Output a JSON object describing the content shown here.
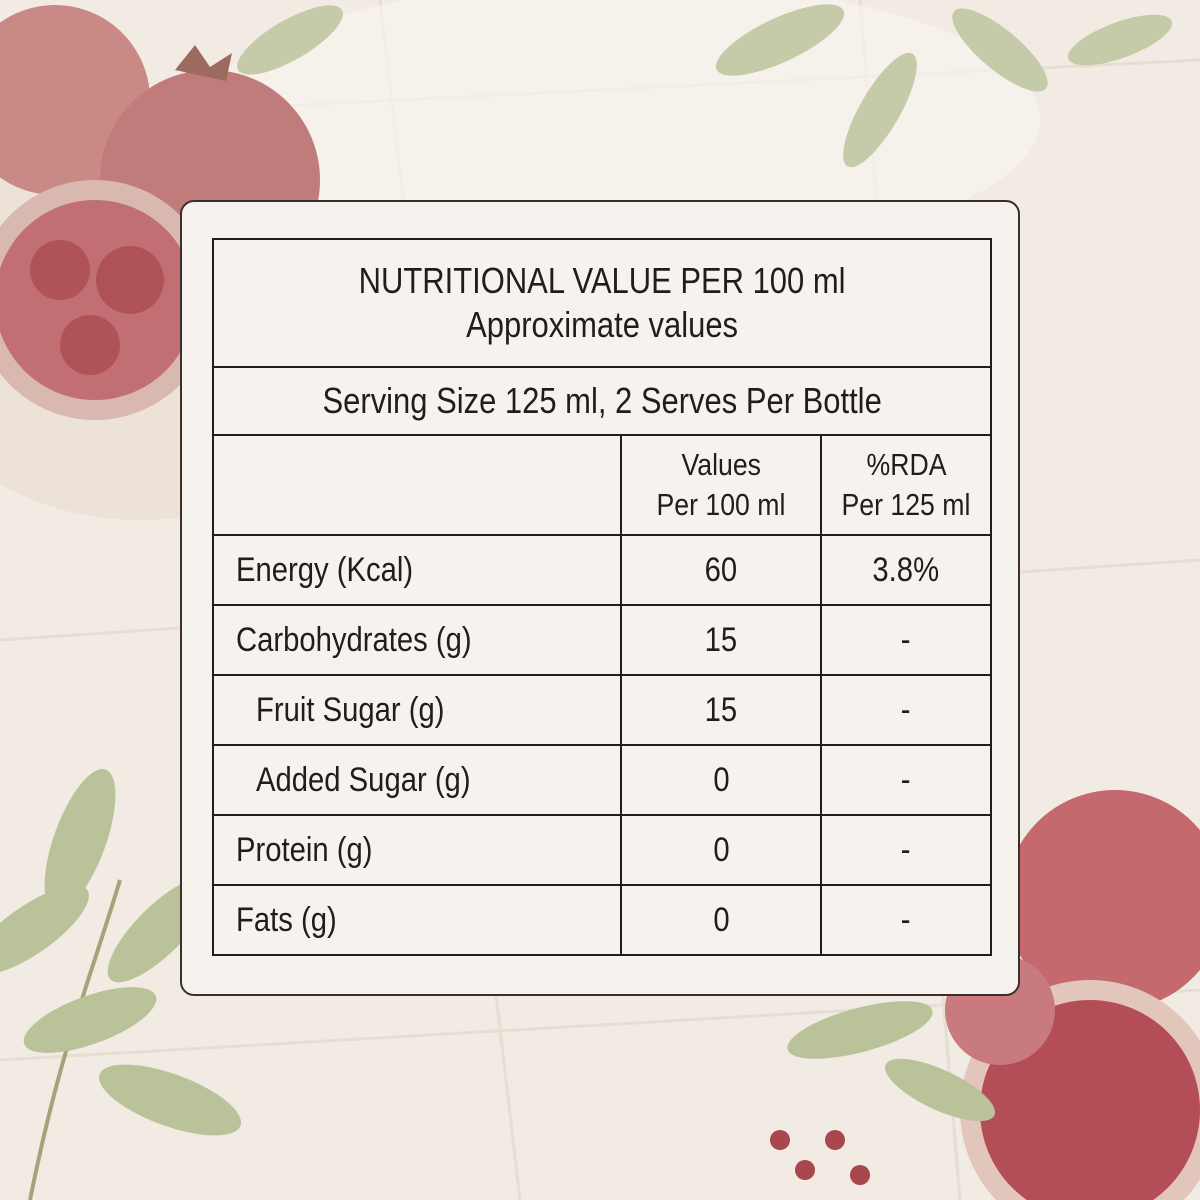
{
  "panel": {
    "title": "NUTRITIONAL VALUE PER 100 ml",
    "subtitle": "Approximate values",
    "serving": "Serving Size 125 ml, 2 Serves Per Bottle"
  },
  "table": {
    "columns": [
      {
        "line1": "Values",
        "line2": "Per 100 ml"
      },
      {
        "line1": "%RDA",
        "line2": "Per 125 ml"
      }
    ],
    "rows": [
      {
        "label": "Energy (Kcal)",
        "value": "60",
        "rda": "3.8%",
        "indent": false
      },
      {
        "label": "Carbohydrates (g)",
        "value": "15",
        "rda": "-",
        "indent": false
      },
      {
        "label": "Fruit Sugar (g)",
        "value": "15",
        "rda": "-",
        "indent": true
      },
      {
        "label": "Added Sugar (g)",
        "value": "0",
        "rda": "-",
        "indent": true
      },
      {
        "label": "Protein (g)",
        "value": "0",
        "rda": "-",
        "indent": false
      },
      {
        "label": "Fats (g)",
        "value": "0",
        "rda": "-",
        "indent": false
      }
    ]
  },
  "colors": {
    "background": "#f2ebe3",
    "card": "#f6f3ee",
    "border": "#3c2f2a",
    "text": "#241c18",
    "pomegranate": "#a8474c",
    "leaf": "#a9b68a"
  },
  "decor": [
    "pomegranate-icon",
    "leaf-icon",
    "tile-background"
  ]
}
